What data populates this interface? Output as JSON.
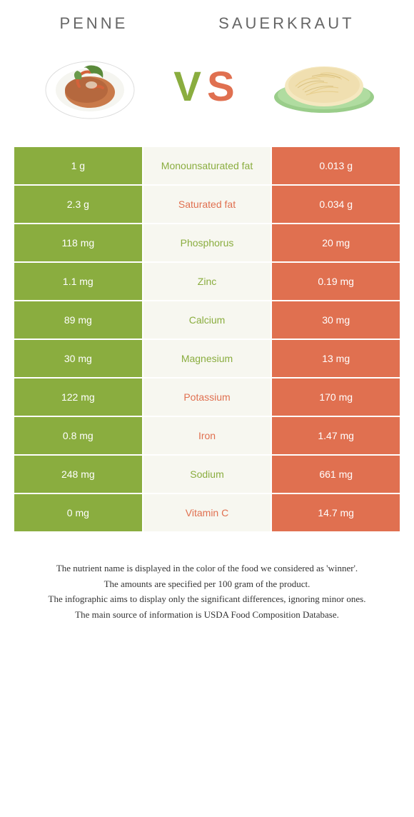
{
  "colors": {
    "left": "#8aad3f",
    "right": "#e07050",
    "mid_bg": "#f7f7f0",
    "page_bg": "#ffffff",
    "header_text": "#666666",
    "footer_text": "#333333"
  },
  "header": {
    "left_title": "Penne",
    "right_title": "Sauerkraut",
    "vs_v": "V",
    "vs_s": "S"
  },
  "typography": {
    "header_fontsize": 22,
    "header_letterspacing": 4,
    "vs_fontsize": 58,
    "cell_fontsize": 14,
    "footer_fontsize": 13
  },
  "table": {
    "rows": [
      {
        "left": "1 g",
        "label": "Monounsaturated fat",
        "right": "0.013 g",
        "winner": "left"
      },
      {
        "left": "2.3 g",
        "label": "Saturated fat",
        "right": "0.034 g",
        "winner": "right"
      },
      {
        "left": "118 mg",
        "label": "Phosphorus",
        "right": "20 mg",
        "winner": "left"
      },
      {
        "left": "1.1 mg",
        "label": "Zinc",
        "right": "0.19 mg",
        "winner": "left"
      },
      {
        "left": "89 mg",
        "label": "Calcium",
        "right": "30 mg",
        "winner": "left"
      },
      {
        "left": "30 mg",
        "label": "Magnesium",
        "right": "13 mg",
        "winner": "left"
      },
      {
        "left": "122 mg",
        "label": "Potassium",
        "right": "170 mg",
        "winner": "right"
      },
      {
        "left": "0.8 mg",
        "label": "Iron",
        "right": "1.47 mg",
        "winner": "right"
      },
      {
        "left": "248 mg",
        "label": "Sodium",
        "right": "661 mg",
        "winner": "left"
      },
      {
        "left": "0 mg",
        "label": "Vitamin C",
        "right": "14.7 mg",
        "winner": "right"
      }
    ]
  },
  "footer": {
    "lines": [
      "The nutrient name is displayed in the color of the food we considered as 'winner'.",
      "The amounts are specified per 100 gram of the product.",
      "The infographic aims to display only the significant differences, ignoring minor ones.",
      "The main source of information is USDA Food Composition Database."
    ]
  }
}
